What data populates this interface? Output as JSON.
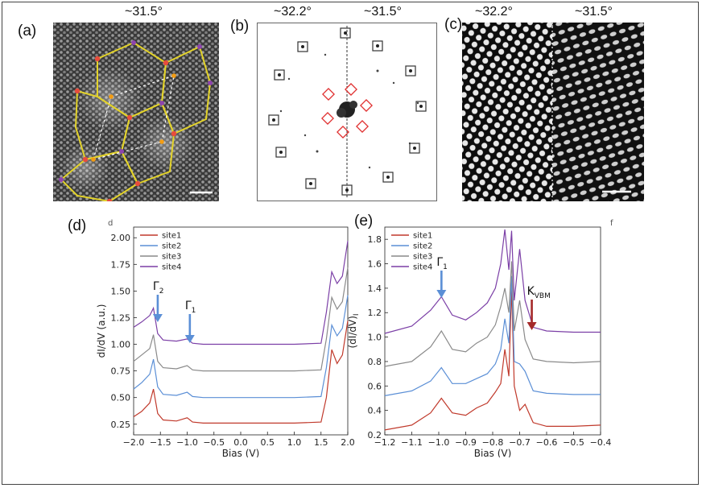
{
  "panels": {
    "a": {
      "label": "(a)",
      "angle": "~31.5°"
    },
    "b": {
      "label": "(b)",
      "angle_left": "~32.2°",
      "angle_right": "~31.5°"
    },
    "c": {
      "label": "(c)",
      "angle_left": "~32.2°",
      "angle_right": "~31.5°"
    },
    "d": {
      "label": "(d)",
      "corner_mark": "d"
    },
    "e": {
      "label": "(e)",
      "corner_mark": "f"
    }
  },
  "colors": {
    "site1": "#c0392b",
    "site2": "#5b8fd6",
    "site3": "#8a8a8a",
    "site4": "#7b3fa6",
    "gamma_arrow": "#5b8fd6",
    "kvbm_arrow": "#a52a2a",
    "hexagon": "#e3d32a",
    "diamond": "#e03030"
  },
  "chart_data": [
    {
      "type": "line",
      "panel": "d",
      "xlabel": "Bias (V)",
      "ylabel": "dI/dV (a.u.)",
      "xlim": [
        -2.0,
        2.0
      ],
      "ylim": [
        0.15,
        2.1
      ],
      "xticks": [
        "−2.0",
        "−1.5",
        "−1.0",
        "−0.5",
        "0.0",
        "0.5",
        "1.0",
        "1.5",
        "2.0"
      ],
      "yticks": [
        "0.25",
        "0.50",
        "0.75",
        "1.00",
        "1.25",
        "1.50",
        "1.75",
        "2.00"
      ],
      "legend": [
        "site1",
        "site2",
        "site3",
        "site4"
      ],
      "legend_position": "top-left",
      "annotations": [
        {
          "text": "Γ",
          "sub": "2",
          "x": -1.55
        },
        {
          "text": "Γ",
          "sub": "1",
          "x": -0.95
        }
      ],
      "series": [
        {
          "name": "site1",
          "x": [
            -2.0,
            -1.85,
            -1.7,
            -1.63,
            -1.55,
            -1.45,
            -1.2,
            -1.0,
            -0.9,
            -0.7,
            0.0,
            1.0,
            1.5,
            1.6,
            1.7,
            1.8,
            1.9,
            2.0
          ],
          "y": [
            0.32,
            0.37,
            0.45,
            0.58,
            0.35,
            0.29,
            0.28,
            0.31,
            0.27,
            0.26,
            0.26,
            0.26,
            0.27,
            0.5,
            0.95,
            0.82,
            0.9,
            1.22
          ]
        },
        {
          "name": "site2",
          "x": [
            -2.0,
            -1.85,
            -1.7,
            -1.63,
            -1.55,
            -1.45,
            -1.2,
            -1.0,
            -0.9,
            -0.7,
            0.0,
            1.0,
            1.5,
            1.6,
            1.7,
            1.8,
            1.9,
            2.0
          ],
          "y": [
            0.58,
            0.64,
            0.72,
            0.86,
            0.6,
            0.53,
            0.52,
            0.55,
            0.51,
            0.5,
            0.5,
            0.5,
            0.51,
            0.78,
            1.18,
            1.08,
            1.15,
            1.46
          ]
        },
        {
          "name": "site3",
          "x": [
            -2.0,
            -1.85,
            -1.7,
            -1.63,
            -1.55,
            -1.45,
            -1.2,
            -1.0,
            -0.9,
            -0.7,
            0.0,
            1.0,
            1.5,
            1.6,
            1.7,
            1.8,
            1.9,
            2.0
          ],
          "y": [
            0.84,
            0.9,
            0.96,
            1.09,
            0.84,
            0.78,
            0.77,
            0.8,
            0.76,
            0.75,
            0.75,
            0.75,
            0.76,
            1.05,
            1.44,
            1.33,
            1.4,
            1.72
          ]
        },
        {
          "name": "site4",
          "x": [
            -2.0,
            -1.85,
            -1.7,
            -1.63,
            -1.55,
            -1.45,
            -1.2,
            -1.0,
            -0.9,
            -0.7,
            0.0,
            1.0,
            1.5,
            1.6,
            1.7,
            1.8,
            1.9,
            2.0
          ],
          "y": [
            1.16,
            1.21,
            1.27,
            1.34,
            1.1,
            1.04,
            1.03,
            1.05,
            1.01,
            1.0,
            1.0,
            1.0,
            1.01,
            1.3,
            1.68,
            1.57,
            1.64,
            1.97
          ]
        }
      ]
    },
    {
      "type": "line",
      "panel": "e",
      "xlabel": "Bias (V)",
      "ylabel": "(dI/dV)",
      "ylabel_sub": "I",
      "xlim": [
        -1.2,
        -0.4
      ],
      "ylim": [
        0.2,
        1.9
      ],
      "xticks": [
        "−1.2",
        "−1.1",
        "−1.0",
        "−0.9",
        "−0.8",
        "−0.7",
        "−0.6",
        "−0.5",
        "−0.4"
      ],
      "yticks": [
        "0.2",
        "0.4",
        "0.6",
        "0.8",
        "1.0",
        "1.2",
        "1.4",
        "1.6",
        "1.8"
      ],
      "legend": [
        "site1",
        "site2",
        "site3",
        "site4"
      ],
      "legend_position": "top-left",
      "annotations": [
        {
          "text": "Γ",
          "sub": "1",
          "x": -0.99
        },
        {
          "text": "K",
          "sub": "VBM",
          "x": -0.655
        }
      ],
      "series": [
        {
          "name": "site1",
          "x": [
            -1.2,
            -1.1,
            -1.03,
            -0.99,
            -0.95,
            -0.9,
            -0.86,
            -0.82,
            -0.79,
            -0.77,
            -0.755,
            -0.74,
            -0.73,
            -0.72,
            -0.7,
            -0.68,
            -0.65,
            -0.6,
            -0.5,
            -0.4
          ],
          "y": [
            0.24,
            0.28,
            0.38,
            0.5,
            0.38,
            0.36,
            0.42,
            0.46,
            0.55,
            0.62,
            0.9,
            0.68,
            1.4,
            0.6,
            0.4,
            0.45,
            0.3,
            0.27,
            0.27,
            0.28
          ]
        },
        {
          "name": "site2",
          "x": [
            -1.2,
            -1.1,
            -1.03,
            -0.99,
            -0.95,
            -0.9,
            -0.86,
            -0.82,
            -0.79,
            -0.77,
            -0.755,
            -0.74,
            -0.73,
            -0.72,
            -0.7,
            -0.68,
            -0.65,
            -0.6,
            -0.5,
            -0.4
          ],
          "y": [
            0.52,
            0.56,
            0.64,
            0.75,
            0.62,
            0.62,
            0.66,
            0.7,
            0.78,
            0.9,
            1.15,
            0.95,
            1.5,
            0.8,
            0.78,
            0.72,
            0.56,
            0.54,
            0.53,
            0.53
          ]
        },
        {
          "name": "site3",
          "x": [
            -1.2,
            -1.1,
            -1.03,
            -0.99,
            -0.95,
            -0.9,
            -0.86,
            -0.82,
            -0.79,
            -0.77,
            -0.755,
            -0.74,
            -0.73,
            -0.72,
            -0.7,
            -0.68,
            -0.65,
            -0.6,
            -0.5,
            -0.4
          ],
          "y": [
            0.76,
            0.8,
            0.92,
            1.05,
            0.9,
            0.88,
            0.95,
            1.0,
            1.1,
            1.25,
            1.4,
            1.2,
            1.62,
            1.05,
            1.3,
            0.98,
            0.82,
            0.8,
            0.79,
            0.8
          ]
        },
        {
          "name": "site4",
          "x": [
            -1.2,
            -1.1,
            -1.03,
            -0.99,
            -0.95,
            -0.9,
            -0.86,
            -0.82,
            -0.79,
            -0.77,
            -0.755,
            -0.74,
            -0.73,
            -0.72,
            -0.7,
            -0.68,
            -0.65,
            -0.6,
            -0.5,
            -0.4
          ],
          "y": [
            1.03,
            1.09,
            1.22,
            1.33,
            1.18,
            1.14,
            1.2,
            1.28,
            1.4,
            1.6,
            1.88,
            1.55,
            1.87,
            1.3,
            1.72,
            1.3,
            1.08,
            1.05,
            1.04,
            1.04
          ]
        }
      ]
    }
  ]
}
